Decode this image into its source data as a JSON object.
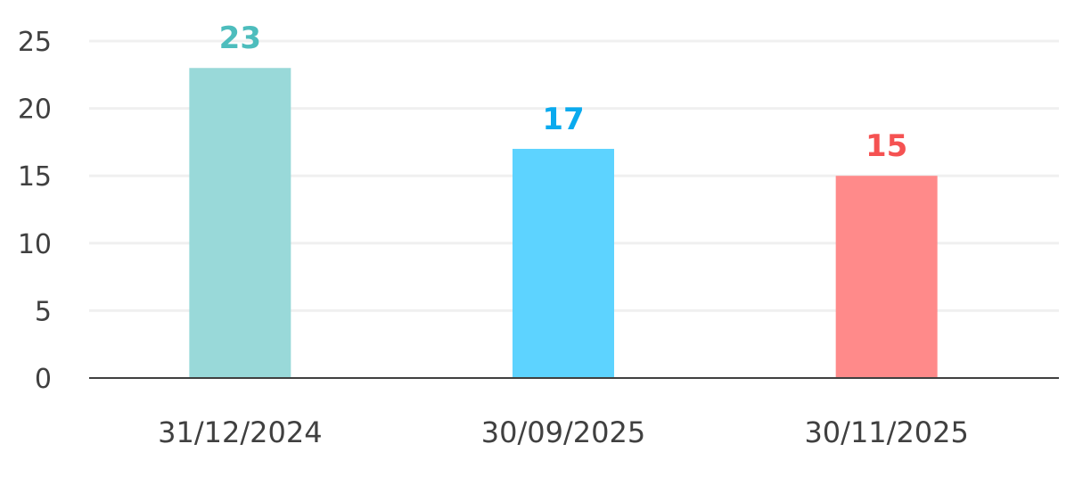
{
  "chart_data": {
    "type": "bar",
    "title": "",
    "xlabel": "",
    "ylabel": "",
    "categories": [
      "31/12/2024",
      "30/09/2025",
      "30/11/2025"
    ],
    "values": [
      23,
      17,
      15
    ],
    "data_labels": [
      "23",
      "17",
      "15"
    ],
    "ylim": [
      0,
      25
    ],
    "yticks": [
      0,
      5,
      10,
      15,
      20,
      25
    ],
    "ytick_labels": [
      "0",
      "5",
      "10",
      "15",
      "20",
      "25"
    ],
    "grid": true,
    "legend": "none",
    "bar_colors": [
      "#99d9d9",
      "#5dd3ff",
      "#ff8a8a"
    ],
    "label_colors": [
      "#4dbdbd",
      "#0aaaee",
      "#f55252"
    ],
    "gridline_color": "#f0f0f0",
    "axis_color": "#404040"
  }
}
